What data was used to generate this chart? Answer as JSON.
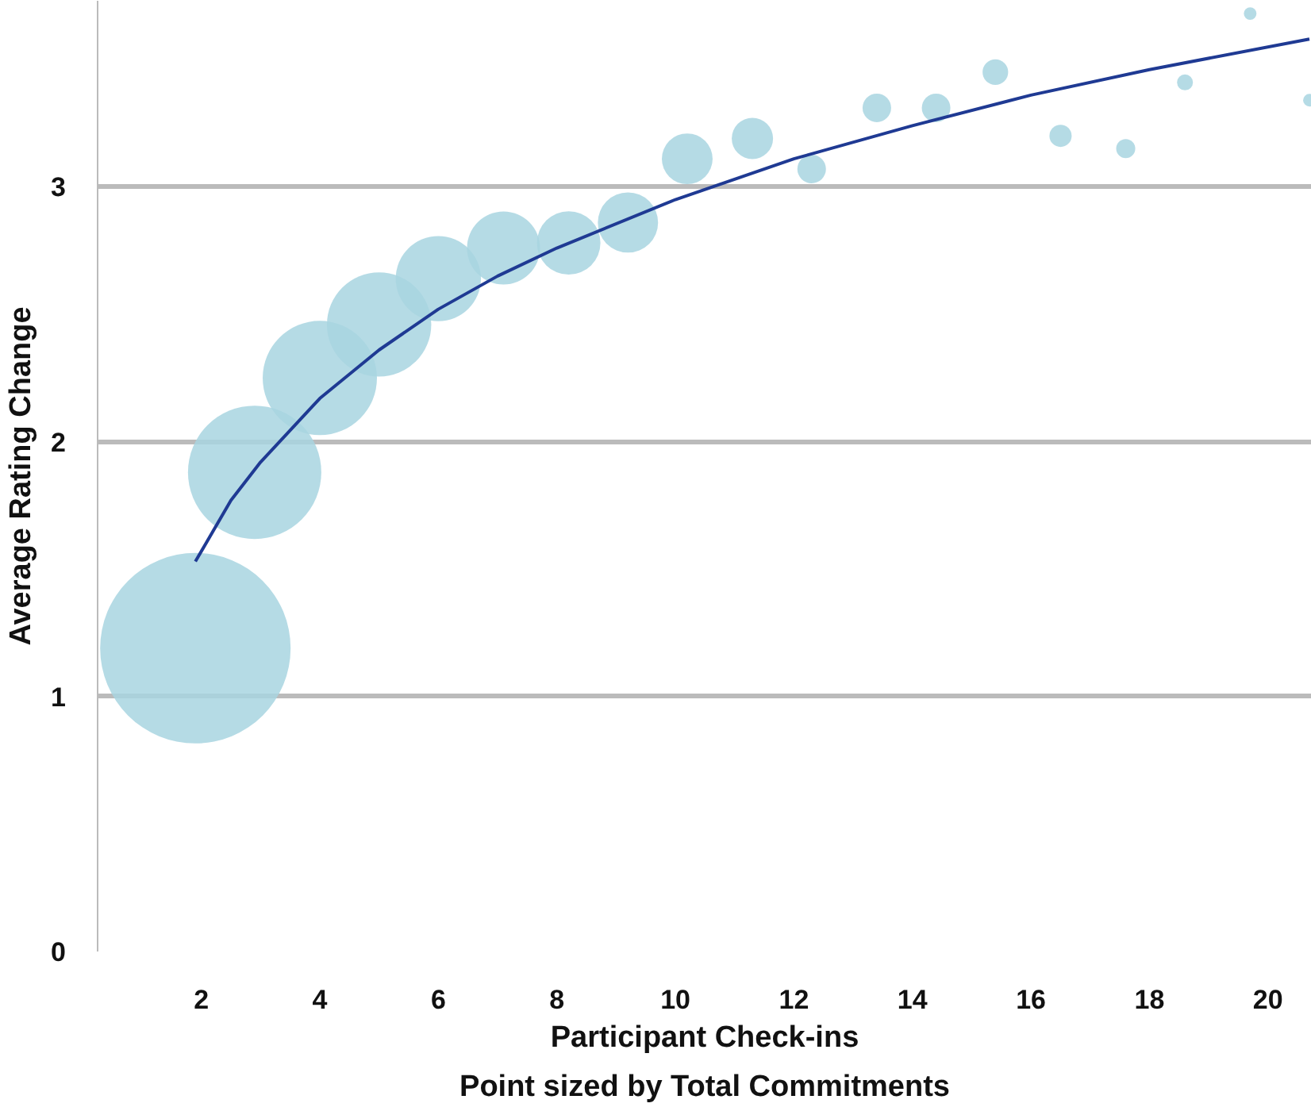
{
  "chart_data": {
    "type": "bubble",
    "xlabel": "Participant Check-ins",
    "ylabel": "Average Rating Change",
    "annotations": [
      "Point sized by Total Commitments"
    ],
    "x": [
      1.9,
      2.9,
      4.0,
      5.0,
      6.0,
      7.1,
      8.2,
      9.2,
      10.2,
      11.3,
      12.3,
      13.4,
      14.4,
      15.4,
      16.5,
      17.6,
      18.6,
      19.7,
      20.7
    ],
    "series": [
      {
        "color": "#a8d5e0",
        "marker": "circle",
        "values": [
          1.19,
          1.88,
          2.25,
          2.46,
          2.64,
          2.76,
          2.78,
          2.86,
          3.11,
          3.19,
          3.07,
          3.31,
          3.31,
          3.45,
          3.2,
          3.15,
          3.41,
          3.68,
          3.34
        ],
        "sizes": [
          1,
          0.49,
          0.36,
          0.3,
          0.2,
          0.147,
          0.111,
          0.1,
          0.071,
          0.047,
          0.0225,
          0.0225,
          0.0225,
          0.018,
          0.0136,
          0.01,
          0.007,
          0.0044,
          0.0044
        ]
      },
      {
        "type": "line",
        "marker": "none",
        "color": "#1f3a93",
        "x": [
          1.9,
          2.5,
          3,
          4,
          5,
          6,
          7,
          8,
          10,
          12,
          14,
          16,
          18,
          20.7
        ],
        "values": [
          1.53,
          1.77,
          1.92,
          2.17,
          2.36,
          2.52,
          2.65,
          2.76,
          2.95,
          3.11,
          3.24,
          3.36,
          3.46,
          3.58
        ]
      }
    ],
    "xlim": [
      0.25,
      20.74
    ],
    "ylim": [
      0,
      3.73
    ],
    "xticks": [
      2,
      4,
      6,
      8,
      10,
      12,
      14,
      16,
      18,
      20
    ],
    "yticks": [
      0,
      1,
      2,
      3
    ],
    "grid": "y"
  }
}
